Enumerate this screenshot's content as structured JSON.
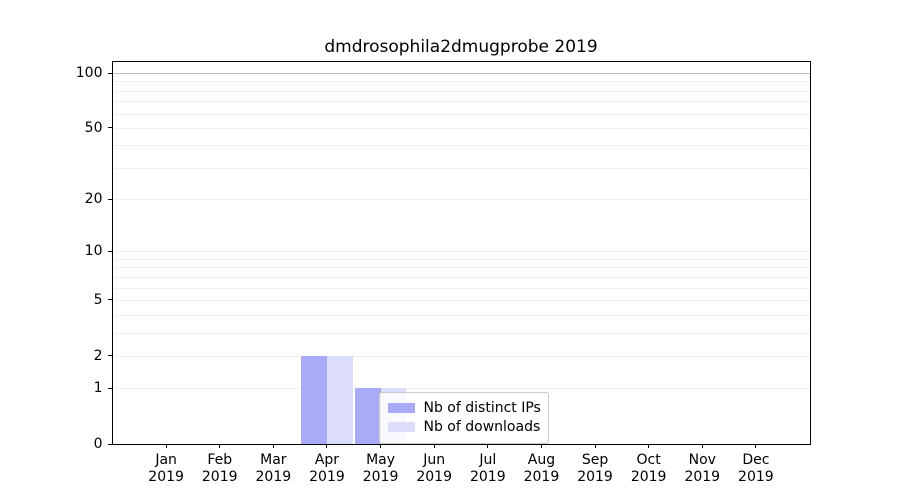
{
  "chart_data": {
    "type": "bar",
    "title": "dmdrosophila2dmugprobe 2019",
    "categories": [
      {
        "month": "Jan",
        "year": "2019"
      },
      {
        "month": "Feb",
        "year": "2019"
      },
      {
        "month": "Mar",
        "year": "2019"
      },
      {
        "month": "Apr",
        "year": "2019"
      },
      {
        "month": "May",
        "year": "2019"
      },
      {
        "month": "Jun",
        "year": "2019"
      },
      {
        "month": "Jul",
        "year": "2019"
      },
      {
        "month": "Aug",
        "year": "2019"
      },
      {
        "month": "Sep",
        "year": "2019"
      },
      {
        "month": "Oct",
        "year": "2019"
      },
      {
        "month": "Nov",
        "year": "2019"
      },
      {
        "month": "Dec",
        "year": "2019"
      }
    ],
    "series": [
      {
        "name": "Nb of distinct IPs",
        "color": "#aaabf6",
        "values": [
          0,
          0,
          0,
          2,
          1,
          0,
          0,
          0,
          0,
          0,
          0,
          0
        ]
      },
      {
        "name": "Nb of downloads",
        "color": "#dcddf8",
        "values": [
          0,
          0,
          0,
          2,
          1,
          0,
          0,
          0,
          0,
          0,
          0,
          0
        ]
      }
    ],
    "yticks": [
      0,
      1,
      2,
      5,
      10,
      20,
      50,
      100
    ],
    "scale": "log1p",
    "ylim": [
      0,
      116
    ],
    "grid": "horizontal",
    "minor_grid_values": [
      1,
      2,
      3,
      4,
      5,
      6,
      7,
      8,
      9,
      10,
      20,
      30,
      40,
      50,
      60,
      70,
      80,
      90
    ],
    "top_grid_value": 100,
    "grid_color_minor": "#f0f0f0",
    "grid_color_top": "#bdbdbd",
    "legend_position": "lower-center-right",
    "xlabel": "",
    "ylabel": ""
  }
}
